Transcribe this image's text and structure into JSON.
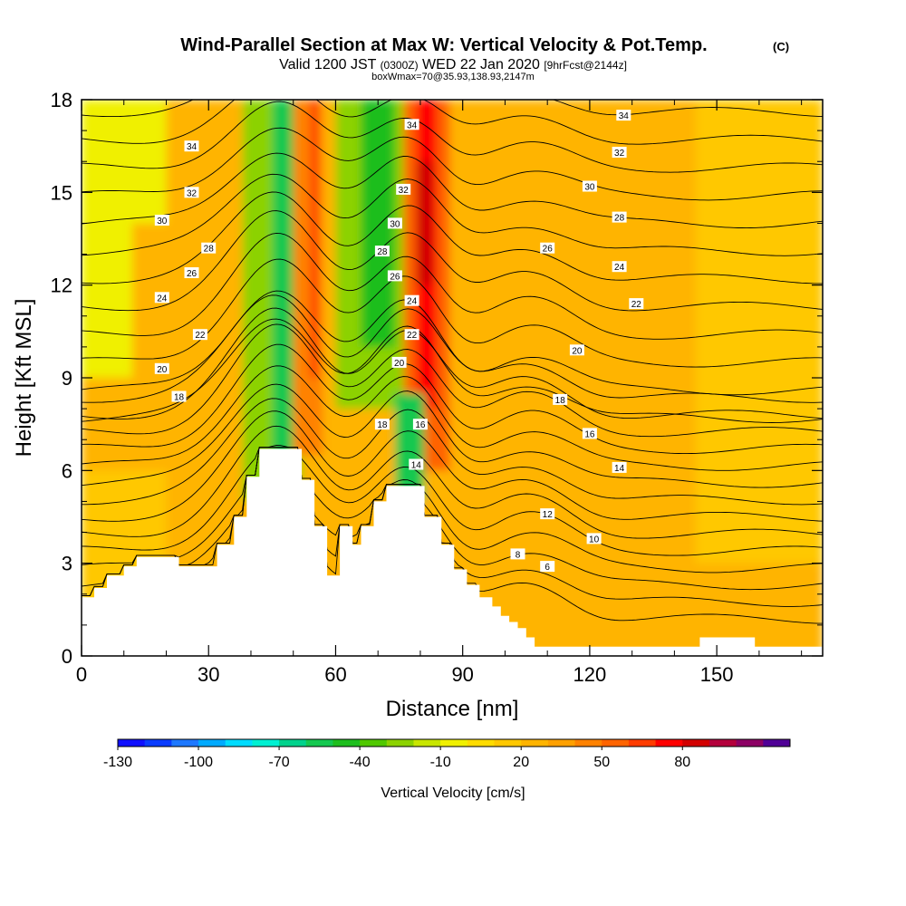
{
  "chart_data": {
    "type": "heatmap",
    "title": "Wind-Parallel Section at Max W: Vertical Velocity & Pot.Temp.",
    "title_mark": "(C)",
    "subtitle_parts": [
      "Valid 1200 JST ",
      "(0300Z)",
      " WED 22 Jan 2020 ",
      "[9hrFcst@2144z]"
    ],
    "subtitle2": "boxWmax=70@35.93,138.93,2147m",
    "xlabel": "Distance [nm]",
    "ylabel": "Height [Kft MSL]",
    "xlim": [
      0,
      175
    ],
    "ylim": [
      0,
      18
    ],
    "xticks": [
      0,
      30,
      60,
      90,
      120,
      150
    ],
    "yticks": [
      0,
      3,
      6,
      9,
      12,
      15,
      18
    ],
    "colorbar": {
      "label": "Vertical Velocity [cm/s]",
      "ticks": [
        -130,
        -100,
        -70,
        -40,
        -10,
        20,
        50,
        80
      ],
      "colors": [
        "#1010ff",
        "#0a3cff",
        "#1e78ff",
        "#00aaff",
        "#00dcff",
        "#00f0d2",
        "#00d28c",
        "#14c850",
        "#1ebe1e",
        "#50c800",
        "#8cd200",
        "#c8e600",
        "#f0f000",
        "#ffdc00",
        "#ffc800",
        "#ffb400",
        "#ffa000",
        "#ff8200",
        "#ff6400",
        "#ff3c00",
        "#ff0000",
        "#d20000",
        "#b4003c",
        "#8c0064",
        "#500096"
      ]
    },
    "terrain": [
      [
        0,
        1.9
      ],
      [
        3,
        1.9
      ],
      [
        3,
        2.2
      ],
      [
        6,
        2.2
      ],
      [
        6,
        2.6
      ],
      [
        10,
        2.6
      ],
      [
        10,
        2.9
      ],
      [
        13,
        2.9
      ],
      [
        13,
        3.2
      ],
      [
        23,
        3.2
      ],
      [
        23,
        2.9
      ],
      [
        32,
        2.9
      ],
      [
        32,
        3.6
      ],
      [
        36,
        3.6
      ],
      [
        36,
        4.5
      ],
      [
        39,
        4.5
      ],
      [
        39,
        5.8
      ],
      [
        42,
        5.8
      ],
      [
        42,
        6.7
      ],
      [
        52,
        6.7
      ],
      [
        52,
        5.7
      ],
      [
        55,
        5.7
      ],
      [
        55,
        4.2
      ],
      [
        58,
        4.2
      ],
      [
        58,
        2.6
      ],
      [
        61,
        2.6
      ],
      [
        61,
        4.2
      ],
      [
        64,
        4.2
      ],
      [
        64,
        3.6
      ],
      [
        66,
        3.6
      ],
      [
        66,
        4.2
      ],
      [
        69,
        4.2
      ],
      [
        69,
        5.0
      ],
      [
        72,
        5.0
      ],
      [
        72,
        5.5
      ],
      [
        81,
        5.5
      ],
      [
        81,
        4.5
      ],
      [
        85,
        4.5
      ],
      [
        85,
        3.6
      ],
      [
        88,
        3.6
      ],
      [
        88,
        2.8
      ],
      [
        91,
        2.8
      ],
      [
        91,
        2.3
      ],
      [
        94,
        2.3
      ],
      [
        94,
        1.9
      ],
      [
        97,
        1.9
      ],
      [
        97,
        1.6
      ],
      [
        99,
        1.6
      ],
      [
        99,
        1.3
      ],
      [
        101,
        1.3
      ],
      [
        101,
        1.1
      ],
      [
        103,
        1.1
      ],
      [
        103,
        0.9
      ],
      [
        105,
        0.9
      ],
      [
        105,
        0.6
      ],
      [
        107,
        0.6
      ],
      [
        107,
        0.3
      ],
      [
        146,
        0.3
      ],
      [
        146,
        0.6
      ],
      [
        159,
        0.6
      ],
      [
        159,
        0.3
      ],
      [
        175,
        0.3
      ]
    ],
    "cells": [
      {
        "x": [
          0,
          175
        ],
        "y": [
          0,
          18
        ],
        "w": 20
      },
      {
        "x": [
          0,
          20
        ],
        "y": [
          1,
          6
        ],
        "w": 15
      },
      {
        "x": [
          0,
          12
        ],
        "y": [
          9,
          18
        ],
        "w": -10
      },
      {
        "x": [
          10,
          20
        ],
        "y": [
          14,
          18
        ],
        "w": -5
      },
      {
        "x": [
          145,
          175
        ],
        "y": [
          3,
          18
        ],
        "w": 15
      },
      {
        "x": [
          38,
          52
        ],
        "y": [
          5,
          18
        ],
        "w": -30
      },
      {
        "x": [
          45,
          50
        ],
        "y": [
          6,
          18
        ],
        "w": -55
      },
      {
        "x": [
          50,
          57
        ],
        "y": [
          6.5,
          18
        ],
        "w": 45
      },
      {
        "x": [
          54,
          56
        ],
        "y": [
          9,
          18
        ],
        "w": 65
      },
      {
        "x": [
          60,
          77
        ],
        "y": [
          8,
          18
        ],
        "w": -25
      },
      {
        "x": [
          66,
          74
        ],
        "y": [
          10,
          18
        ],
        "w": -50
      },
      {
        "x": [
          76,
          87
        ],
        "y": [
          6,
          18
        ],
        "w": 55
      },
      {
        "x": [
          79,
          84
        ],
        "y": [
          8,
          18
        ],
        "w": 75
      },
      {
        "x": [
          79,
          83
        ],
        "y": [
          12,
          16
        ],
        "w": 85
      },
      {
        "x": [
          74,
          81
        ],
        "y": [
          5,
          8.5
        ],
        "w": -55
      }
    ],
    "isentropes": {
      "levels": [
        4,
        5,
        6,
        7,
        8,
        9,
        10,
        11,
        12,
        13,
        14,
        15,
        16,
        17,
        18,
        19,
        20,
        21,
        22,
        23,
        24,
        25,
        26,
        27,
        28,
        29,
        30,
        31,
        32,
        33,
        34,
        35,
        36
      ],
      "labels": [
        {
          "text": "34",
          "x": 26,
          "y": 16.5
        },
        {
          "text": "32",
          "x": 26,
          "y": 15.0
        },
        {
          "text": "30",
          "x": 19,
          "y": 14.1
        },
        {
          "text": "28",
          "x": 30,
          "y": 13.2
        },
        {
          "text": "26",
          "x": 26,
          "y": 12.4
        },
        {
          "text": "24",
          "x": 19,
          "y": 11.6
        },
        {
          "text": "22",
          "x": 28,
          "y": 10.4
        },
        {
          "text": "20",
          "x": 19,
          "y": 9.3
        },
        {
          "text": "18",
          "x": 23,
          "y": 8.4
        },
        {
          "text": "34",
          "x": 78,
          "y": 17.2
        },
        {
          "text": "32",
          "x": 76,
          "y": 15.1
        },
        {
          "text": "30",
          "x": 74,
          "y": 14.0
        },
        {
          "text": "28",
          "x": 71,
          "y": 13.1
        },
        {
          "text": "26",
          "x": 74,
          "y": 12.3
        },
        {
          "text": "24",
          "x": 78,
          "y": 11.5
        },
        {
          "text": "22",
          "x": 78,
          "y": 10.4
        },
        {
          "text": "20",
          "x": 75,
          "y": 9.5
        },
        {
          "text": "18",
          "x": 71,
          "y": 7.5
        },
        {
          "text": "16",
          "x": 80,
          "y": 7.5
        },
        {
          "text": "14",
          "x": 79,
          "y": 6.2
        },
        {
          "text": "34",
          "x": 128,
          "y": 17.5
        },
        {
          "text": "32",
          "x": 127,
          "y": 16.3
        },
        {
          "text": "30",
          "x": 120,
          "y": 15.2
        },
        {
          "text": "28",
          "x": 127,
          "y": 14.2
        },
        {
          "text": "26",
          "x": 110,
          "y": 13.2
        },
        {
          "text": "24",
          "x": 127,
          "y": 12.6
        },
        {
          "text": "22",
          "x": 131,
          "y": 11.4
        },
        {
          "text": "20",
          "x": 117,
          "y": 9.9
        },
        {
          "text": "18",
          "x": 113,
          "y": 8.3
        },
        {
          "text": "16",
          "x": 120,
          "y": 7.2
        },
        {
          "text": "14",
          "x": 127,
          "y": 6.1
        },
        {
          "text": "12",
          "x": 110,
          "y": 4.6
        },
        {
          "text": "10",
          "x": 121,
          "y": 3.8
        },
        {
          "text": "8",
          "x": 103,
          "y": 3.3
        },
        {
          "text": "6",
          "x": 110,
          "y": 2.9
        }
      ]
    }
  }
}
